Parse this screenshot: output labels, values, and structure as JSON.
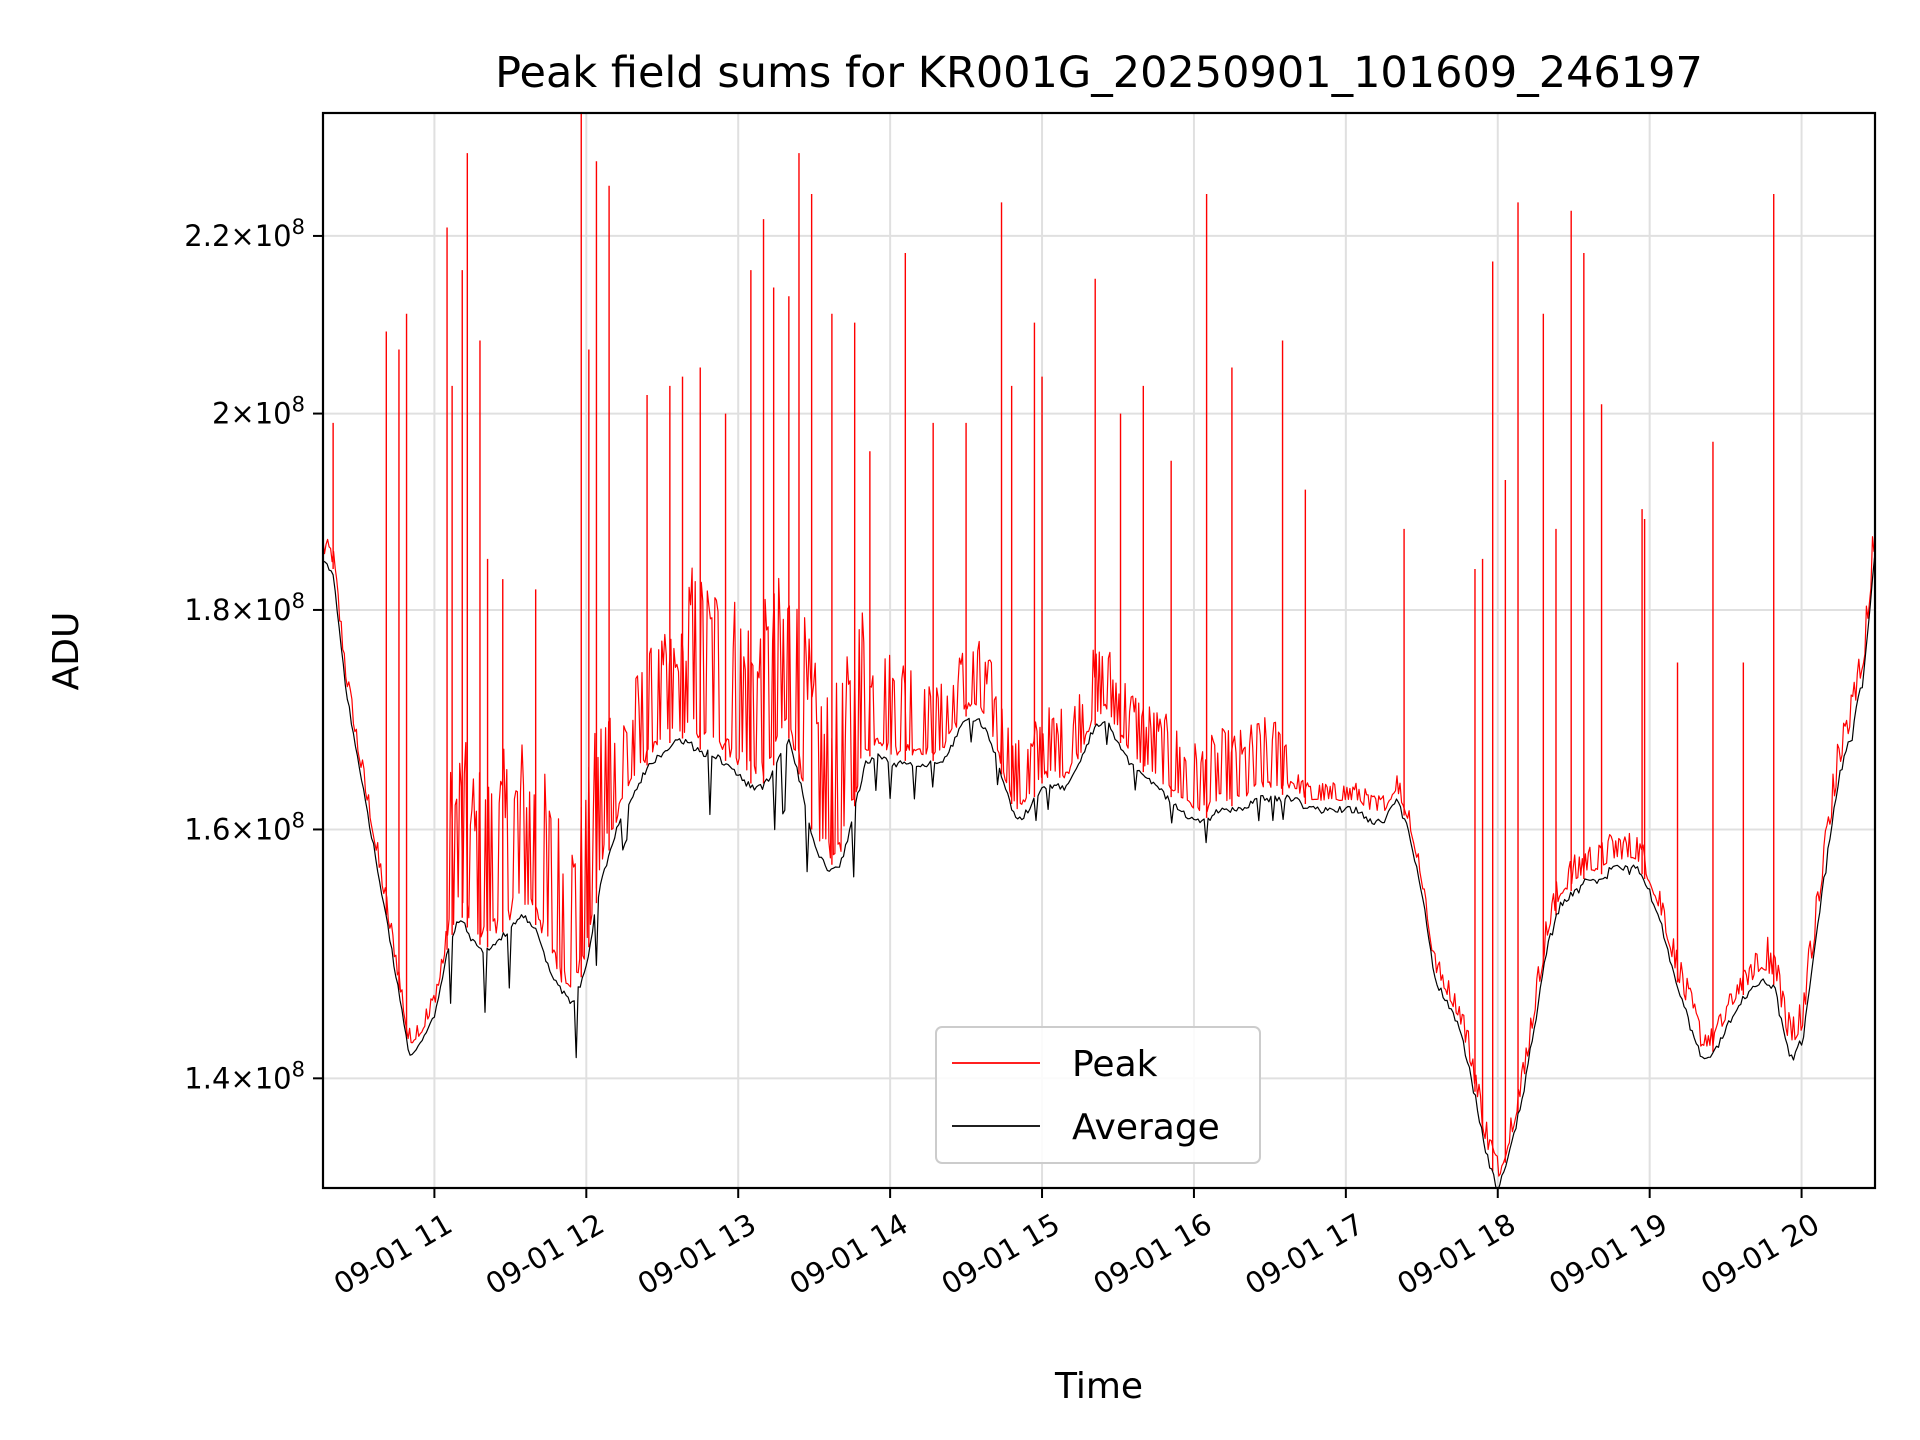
{
  "chart_data": {
    "type": "line",
    "title": "Peak field sums for KR001G_20250901_101609_246197",
    "xlabel": "Time",
    "ylabel": "ADU",
    "yscale": "log",
    "x_range": [
      "2025-09-01 10:16",
      "2025-09-01 20:29"
    ],
    "ylim": [
      132000000.0,
      235000000.0
    ],
    "x_ticks": [
      "09-01 11",
      "09-01 12",
      "09-01 13",
      "09-01 14",
      "09-01 15",
      "09-01 16",
      "09-01 17",
      "09-01 18",
      "09-01 19",
      "09-01 20"
    ],
    "y_ticks": [
      {
        "value": 140000000.0,
        "mantissa": "1.4",
        "exponent": "8"
      },
      {
        "value": 160000000.0,
        "mantissa": "1.6",
        "exponent": "8"
      },
      {
        "value": 180000000.0,
        "mantissa": "1.8",
        "exponent": "8"
      },
      {
        "value": 200000000.0,
        "mantissa": "2",
        "exponent": "8"
      },
      {
        "value": 220000000.0,
        "mantissa": "2.2",
        "exponent": "8"
      }
    ],
    "grid": true,
    "legend_position": "bottom-center",
    "series": [
      {
        "name": "Peak",
        "color": "#ff0000",
        "spikes": [
          [
            "10:20",
            199000000.0
          ],
          [
            "10:41",
            209000000.0
          ],
          [
            "10:46",
            207000000.0
          ],
          [
            "10:49",
            211000000.0
          ],
          [
            "11:05",
            221000000.0
          ],
          [
            "11:07",
            203000000.0
          ],
          [
            "11:11",
            216000000.0
          ],
          [
            "11:13",
            230000000.0
          ],
          [
            "11:18",
            208000000.0
          ],
          [
            "11:21",
            185000000.0
          ],
          [
            "11:27",
            183000000.0
          ],
          [
            "11:40",
            182000000.0
          ],
          [
            "11:58",
            235000000.0
          ],
          [
            "12:01",
            207000000.0
          ],
          [
            "12:04",
            229000000.0
          ],
          [
            "12:09",
            226000000.0
          ],
          [
            "12:24",
            202000000.0
          ],
          [
            "12:33",
            203000000.0
          ],
          [
            "12:38",
            204000000.0
          ],
          [
            "12:45",
            205000000.0
          ],
          [
            "12:55",
            200000000.0
          ],
          [
            "13:05",
            216000000.0
          ],
          [
            "13:10",
            222000000.0
          ],
          [
            "13:14",
            214000000.0
          ],
          [
            "13:20",
            213000000.0
          ],
          [
            "13:24",
            230000000.0
          ],
          [
            "13:29",
            225000000.0
          ],
          [
            "13:37",
            211000000.0
          ],
          [
            "13:46",
            210000000.0
          ],
          [
            "13:52",
            196000000.0
          ],
          [
            "14:06",
            218000000.0
          ],
          [
            "14:17",
            199000000.0
          ],
          [
            "14:30",
            199000000.0
          ],
          [
            "14:44",
            224000000.0
          ],
          [
            "14:48",
            203000000.0
          ],
          [
            "14:57",
            210000000.0
          ],
          [
            "15:00",
            204000000.0
          ],
          [
            "15:21",
            215000000.0
          ],
          [
            "15:31",
            200000000.0
          ],
          [
            "15:40",
            203000000.0
          ],
          [
            "15:51",
            195000000.0
          ],
          [
            "16:05",
            225000000.0
          ],
          [
            "16:15",
            205000000.0
          ],
          [
            "16:35",
            208000000.0
          ],
          [
            "16:44",
            192000000.0
          ],
          [
            "17:23",
            188000000.0
          ],
          [
            "17:51",
            184000000.0
          ],
          [
            "17:54",
            185000000.0
          ],
          [
            "17:58",
            217000000.0
          ],
          [
            "18:03",
            193000000.0
          ],
          [
            "18:08",
            224000000.0
          ],
          [
            "18:18",
            211000000.0
          ],
          [
            "18:23",
            188000000.0
          ],
          [
            "18:29",
            223000000.0
          ],
          [
            "18:34",
            218000000.0
          ],
          [
            "18:41",
            201000000.0
          ],
          [
            "18:57",
            190000000.0
          ],
          [
            "18:58",
            189000000.0
          ],
          [
            "19:11",
            175000000.0
          ],
          [
            "19:25",
            197000000.0
          ],
          [
            "19:37",
            175000000.0
          ],
          [
            "19:49",
            225000000.0
          ]
        ]
      },
      {
        "name": "Average",
        "color": "#000000",
        "points": [
          [
            "10:16",
            185000000.0
          ],
          [
            "10:20",
            184000000.0
          ],
          [
            "10:25",
            173000000.0
          ],
          [
            "10:30",
            166000000.0
          ],
          [
            "10:35",
            160000000.0
          ],
          [
            "10:40",
            154000000.0
          ],
          [
            "10:45",
            148000000.0
          ],
          [
            "10:50",
            142000000.0
          ],
          [
            "10:55",
            143000000.0
          ],
          [
            "11:00",
            145000000.0
          ],
          [
            "11:05",
            150000000.0
          ],
          [
            "11:10",
            153000000.0
          ],
          [
            "11:15",
            151000000.0
          ],
          [
            "11:20",
            150000000.0
          ],
          [
            "11:25",
            151000000.0
          ],
          [
            "11:30",
            152000000.0
          ],
          [
            "11:35",
            153000000.0
          ],
          [
            "11:40",
            152000000.0
          ],
          [
            "11:45",
            149000000.0
          ],
          [
            "11:50",
            147000000.0
          ],
          [
            "11:55",
            146000000.0
          ],
          [
            "12:00",
            149000000.0
          ],
          [
            "12:05",
            155000000.0
          ],
          [
            "12:10",
            159000000.0
          ],
          [
            "12:15",
            162000000.0
          ],
          [
            "12:20",
            164000000.0
          ],
          [
            "12:25",
            166000000.0
          ],
          [
            "12:30",
            167000000.0
          ],
          [
            "12:35",
            168000000.0
          ],
          [
            "12:40",
            168000000.0
          ],
          [
            "12:45",
            167000000.0
          ],
          [
            "12:50",
            167000000.0
          ],
          [
            "12:55",
            166000000.0
          ],
          [
            "13:00",
            165000000.0
          ],
          [
            "13:05",
            164000000.0
          ],
          [
            "13:10",
            164000000.0
          ],
          [
            "13:15",
            166000000.0
          ],
          [
            "13:20",
            168000000.0
          ],
          [
            "13:25",
            164000000.0
          ],
          [
            "13:30",
            159000000.0
          ],
          [
            "13:35",
            157000000.0
          ],
          [
            "13:40",
            157000000.0
          ],
          [
            "13:45",
            161000000.0
          ],
          [
            "13:50",
            166000000.0
          ],
          [
            "13:55",
            167000000.0
          ],
          [
            "14:00",
            166000000.0
          ],
          [
            "14:05",
            166000000.0
          ],
          [
            "14:10",
            166000000.0
          ],
          [
            "14:15",
            166000000.0
          ],
          [
            "14:20",
            166000000.0
          ],
          [
            "14:25",
            168000000.0
          ],
          [
            "14:30",
            170000000.0
          ],
          [
            "14:35",
            170000000.0
          ],
          [
            "14:40",
            168000000.0
          ],
          [
            "14:45",
            164000000.0
          ],
          [
            "14:50",
            161000000.0
          ],
          [
            "14:55",
            162000000.0
          ],
          [
            "15:00",
            164000000.0
          ],
          [
            "15:05",
            164000000.0
          ],
          [
            "15:10",
            164000000.0
          ],
          [
            "15:15",
            166000000.0
          ],
          [
            "15:20",
            169000000.0
          ],
          [
            "15:25",
            170000000.0
          ],
          [
            "15:30",
            168000000.0
          ],
          [
            "15:35",
            166000000.0
          ],
          [
            "15:40",
            165000000.0
          ],
          [
            "15:45",
            164000000.0
          ],
          [
            "15:50",
            163000000.0
          ],
          [
            "15:55",
            162000000.0
          ],
          [
            "16:00",
            161000000.0
          ],
          [
            "16:05",
            161000000.0
          ],
          [
            "16:10",
            162000000.0
          ],
          [
            "16:15",
            162000000.0
          ],
          [
            "16:20",
            162000000.0
          ],
          [
            "16:25",
            163000000.0
          ],
          [
            "16:30",
            163000000.0
          ],
          [
            "16:35",
            163000000.0
          ],
          [
            "16:40",
            163000000.0
          ],
          [
            "16:45",
            162000000.0
          ],
          [
            "16:50",
            162000000.0
          ],
          [
            "16:55",
            162000000.0
          ],
          [
            "17:00",
            162000000.0
          ],
          [
            "17:05",
            162000000.0
          ],
          [
            "17:10",
            161000000.0
          ],
          [
            "17:15",
            161000000.0
          ],
          [
            "17:20",
            163000000.0
          ],
          [
            "17:25",
            160000000.0
          ],
          [
            "17:30",
            155000000.0
          ],
          [
            "17:35",
            148000000.0
          ],
          [
            "17:40",
            146000000.0
          ],
          [
            "17:45",
            144000000.0
          ],
          [
            "17:50",
            140000000.0
          ],
          [
            "17:55",
            135000000.0
          ],
          [
            "18:00",
            132000000.0
          ],
          [
            "18:05",
            135000000.0
          ],
          [
            "18:10",
            139000000.0
          ],
          [
            "18:15",
            145000000.0
          ],
          [
            "18:20",
            151000000.0
          ],
          [
            "18:25",
            154000000.0
          ],
          [
            "18:30",
            155000000.0
          ],
          [
            "18:35",
            156000000.0
          ],
          [
            "18:40",
            156000000.0
          ],
          [
            "18:45",
            157000000.0
          ],
          [
            "18:50",
            157000000.0
          ],
          [
            "18:55",
            157000000.0
          ],
          [
            "19:00",
            155000000.0
          ],
          [
            "19:05",
            152000000.0
          ],
          [
            "19:10",
            148000000.0
          ],
          [
            "19:15",
            145000000.0
          ],
          [
            "19:20",
            142000000.0
          ],
          [
            "19:25",
            142000000.0
          ],
          [
            "19:30",
            144000000.0
          ],
          [
            "19:35",
            146000000.0
          ],
          [
            "19:40",
            147000000.0
          ],
          [
            "19:45",
            148000000.0
          ],
          [
            "19:50",
            147000000.0
          ],
          [
            "19:55",
            142000000.0
          ],
          [
            "20:00",
            143000000.0
          ],
          [
            "20:05",
            150000000.0
          ],
          [
            "20:10",
            158000000.0
          ],
          [
            "20:15",
            165000000.0
          ],
          [
            "20:20",
            169000000.0
          ],
          [
            "20:25",
            175000000.0
          ],
          [
            "20:29",
            186000000.0
          ]
        ]
      }
    ]
  }
}
